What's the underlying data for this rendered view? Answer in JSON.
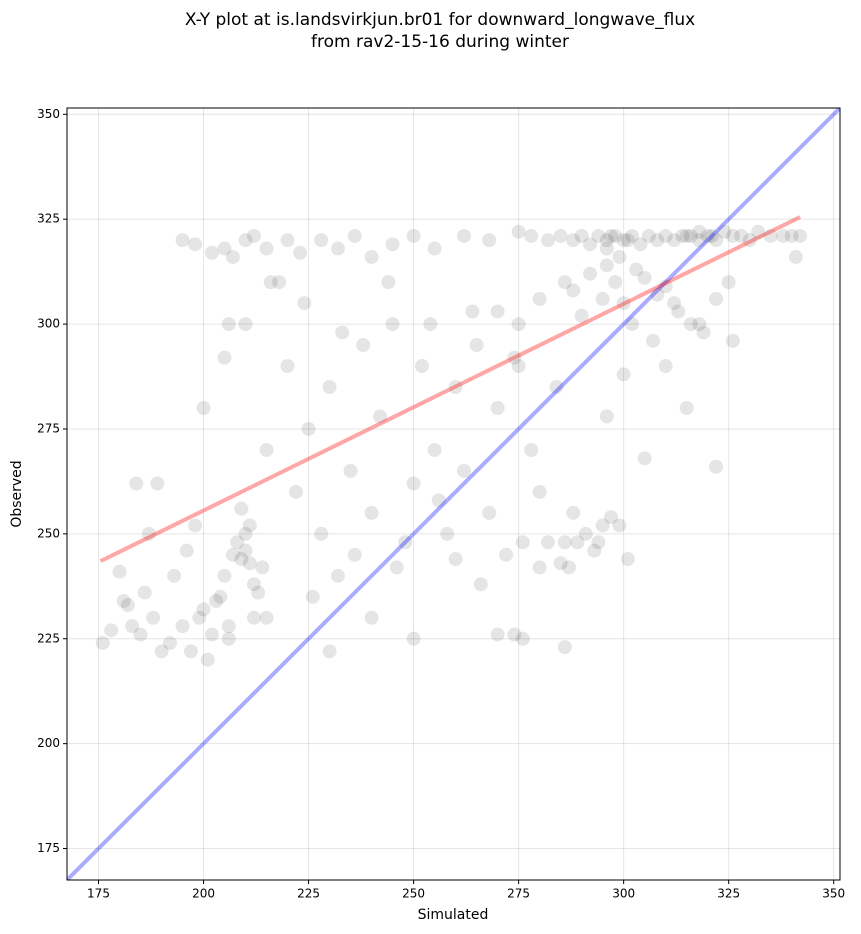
{
  "chart_data": {
    "type": "scatter",
    "title": [
      "X-Y plot at is.landsvirkjun.br01 for downward_longwave_flux",
      "from rav2-15-16 during winter"
    ],
    "xlabel": "Simulated",
    "ylabel": "Observed",
    "xlim": [
      167.5,
      351.5
    ],
    "ylim": [
      167.5,
      351.5
    ],
    "xticks": [
      175,
      200,
      225,
      250,
      275,
      300,
      325,
      350
    ],
    "yticks": [
      175,
      200,
      225,
      250,
      275,
      300,
      325,
      350
    ],
    "grid": true,
    "point_color": "#000000",
    "point_opacity": 0.1,
    "x": [
      195,
      198,
      202,
      205,
      207,
      210,
      212,
      215,
      220,
      223,
      228,
      232,
      236,
      240,
      245,
      250,
      255,
      262,
      268,
      275,
      278,
      282,
      285,
      288,
      290,
      292,
      294,
      296,
      297,
      298,
      300,
      302,
      304,
      306,
      308,
      310,
      312,
      314,
      316,
      318,
      320,
      322,
      324,
      326,
      328,
      330,
      332,
      335,
      338,
      340,
      342,
      341,
      296,
      299,
      301,
      315,
      318,
      321,
      288,
      292,
      295,
      298,
      300,
      303,
      305,
      308,
      310,
      313,
      316,
      319,
      322,
      325,
      290,
      296,
      302,
      307,
      312,
      318,
      286,
      280,
      275,
      270,
      176,
      178,
      180,
      182,
      183,
      185,
      186,
      188,
      190,
      192,
      195,
      197,
      199,
      200,
      202,
      203,
      205,
      206,
      207,
      208,
      209,
      210,
      210,
      211,
      212,
      213,
      215,
      184,
      187,
      189,
      193,
      198,
      201,
      204,
      206,
      209,
      211,
      214,
      181,
      196,
      200,
      205,
      210,
      215,
      220,
      222,
      225,
      228,
      230,
      232,
      235,
      238,
      240,
      242,
      245,
      248,
      250,
      252,
      255,
      258,
      260,
      262,
      265,
      268,
      270,
      272,
      275,
      278,
      280,
      218,
      224,
      233,
      244,
      254,
      264,
      274,
      284,
      212,
      226,
      236,
      246,
      256,
      266,
      276,
      286,
      206,
      216,
      296,
      300,
      305,
      310,
      315,
      322,
      326,
      250,
      240,
      230,
      260,
      270,
      280,
      282,
      285,
      287,
      289,
      291,
      293,
      295,
      297,
      299,
      301,
      288,
      294,
      274,
      276,
      286
    ],
    "y": [
      320,
      319,
      317,
      318,
      316,
      320,
      321,
      318,
      320,
      317,
      320,
      318,
      321,
      316,
      319,
      321,
      318,
      321,
      320,
      322,
      321,
      320,
      321,
      320,
      321,
      319,
      321,
      320,
      321,
      321,
      320,
      321,
      319,
      321,
      320,
      321,
      320,
      321,
      321,
      320,
      321,
      320,
      322,
      321,
      321,
      320,
      322,
      321,
      321,
      321,
      321,
      316,
      318,
      316,
      320,
      321,
      322,
      321,
      308,
      312,
      306,
      310,
      305,
      313,
      311,
      307,
      309,
      303,
      300,
      298,
      306,
      310,
      302,
      314,
      300,
      296,
      305,
      300,
      310,
      306,
      300,
      303,
      224,
      227,
      241,
      233,
      228,
      226,
      236,
      230,
      222,
      224,
      228,
      222,
      230,
      232,
      226,
      234,
      240,
      228,
      245,
      248,
      244,
      246,
      250,
      243,
      238,
      236,
      230,
      262,
      250,
      262,
      240,
      252,
      220,
      235,
      225,
      256,
      252,
      242,
      234,
      246,
      280,
      292,
      300,
      270,
      290,
      260,
      275,
      250,
      285,
      240,
      265,
      295,
      255,
      278,
      300,
      248,
      262,
      290,
      270,
      250,
      285,
      265,
      295,
      255,
      280,
      245,
      290,
      270,
      260,
      310,
      305,
      298,
      310,
      300,
      303,
      292,
      285,
      230,
      235,
      245,
      242,
      258,
      238,
      248,
      248,
      300,
      310,
      278,
      288,
      268,
      290,
      280,
      266,
      296,
      225,
      230,
      222,
      244,
      226,
      242,
      248,
      243,
      242,
      248,
      250,
      246,
      252,
      254,
      252,
      244,
      255,
      248,
      226,
      225,
      223
    ],
    "lines": [
      {
        "color": "#0000ff",
        "opacity": 0.33,
        "x": [
          167.5,
          351.5
        ],
        "y": [
          167.5,
          351.5
        ]
      },
      {
        "color": "#ff0000",
        "opacity": 0.35,
        "x": [
          175.5,
          342
        ],
        "y": [
          243.5,
          325.5
        ]
      }
    ]
  }
}
